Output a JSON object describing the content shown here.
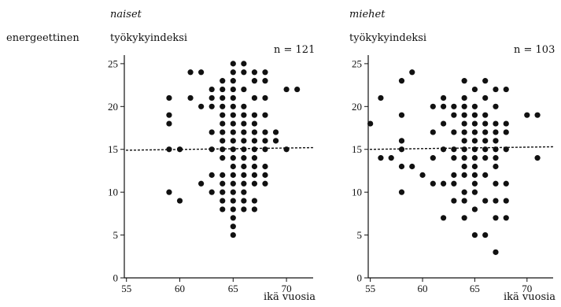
{
  "row_label": "energeettinen",
  "chart_data": [
    {
      "type": "scatter",
      "title": "naiset",
      "ylabel": "työkykyindeksi",
      "xlabel": "ikä vuosia",
      "annotation": "n = 121",
      "xlim": [
        54.8,
        72.5
      ],
      "ylim": [
        0,
        26
      ],
      "xticks": [
        55,
        60,
        65,
        70
      ],
      "yticks": [
        0,
        5,
        10,
        15,
        20,
        25
      ],
      "grid": false,
      "reference_line": {
        "style": "dashed",
        "y_start": 14.9,
        "y_end": 15.2
      },
      "points": [
        [
          59,
          21
        ],
        [
          59,
          19
        ],
        [
          59,
          18
        ],
        [
          59,
          15
        ],
        [
          59,
          10
        ],
        [
          60,
          15
        ],
        [
          60,
          9
        ],
        [
          61,
          24
        ],
        [
          61,
          21
        ],
        [
          62,
          24
        ],
        [
          62,
          20
        ],
        [
          62,
          11
        ],
        [
          63,
          22
        ],
        [
          63,
          21
        ],
        [
          63,
          20
        ],
        [
          63,
          17
        ],
        [
          63,
          15
        ],
        [
          63,
          12
        ],
        [
          63,
          10
        ],
        [
          64,
          23
        ],
        [
          64,
          22
        ],
        [
          64,
          21
        ],
        [
          64,
          20
        ],
        [
          64,
          19
        ],
        [
          64,
          18
        ],
        [
          64,
          17
        ],
        [
          64,
          16
        ],
        [
          64,
          15
        ],
        [
          64,
          14
        ],
        [
          64,
          12
        ],
        [
          64,
          11
        ],
        [
          64,
          10
        ],
        [
          64,
          9
        ],
        [
          64,
          8
        ],
        [
          65,
          25
        ],
        [
          65,
          24
        ],
        [
          65,
          23
        ],
        [
          65,
          22
        ],
        [
          65,
          21
        ],
        [
          65,
          20
        ],
        [
          65,
          19
        ],
        [
          65,
          18
        ],
        [
          65,
          17
        ],
        [
          65,
          16
        ],
        [
          65,
          15
        ],
        [
          65,
          14
        ],
        [
          65,
          13
        ],
        [
          65,
          12
        ],
        [
          65,
          11
        ],
        [
          65,
          10
        ],
        [
          65,
          9
        ],
        [
          65,
          8
        ],
        [
          65,
          7
        ],
        [
          65,
          6
        ],
        [
          65,
          5
        ],
        [
          66,
          25
        ],
        [
          66,
          24
        ],
        [
          66,
          22
        ],
        [
          66,
          20
        ],
        [
          66,
          19
        ],
        [
          66,
          18
        ],
        [
          66,
          17
        ],
        [
          66,
          16
        ],
        [
          66,
          15
        ],
        [
          66,
          14
        ],
        [
          66,
          13
        ],
        [
          66,
          12
        ],
        [
          66,
          11
        ],
        [
          66,
          10
        ],
        [
          66,
          9
        ],
        [
          66,
          8
        ],
        [
          67,
          24
        ],
        [
          67,
          23
        ],
        [
          67,
          21
        ],
        [
          67,
          19
        ],
        [
          67,
          18
        ],
        [
          67,
          17
        ],
        [
          67,
          16
        ],
        [
          67,
          15
        ],
        [
          67,
          14
        ],
        [
          67,
          13
        ],
        [
          67,
          12
        ],
        [
          67,
          11
        ],
        [
          67,
          9
        ],
        [
          67,
          8
        ],
        [
          68,
          24
        ],
        [
          68,
          23
        ],
        [
          68,
          21
        ],
        [
          68,
          19
        ],
        [
          68,
          17
        ],
        [
          68,
          16
        ],
        [
          68,
          15
        ],
        [
          68,
          13
        ],
        [
          68,
          12
        ],
        [
          68,
          11
        ],
        [
          69,
          17
        ],
        [
          69,
          16
        ],
        [
          70,
          15
        ],
        [
          70,
          22
        ],
        [
          71,
          22
        ]
      ]
    },
    {
      "type": "scatter",
      "title": "miehet",
      "ylabel": "työkykyindeksi",
      "xlabel": "ikä vuosia",
      "annotation": "n = 103",
      "xlim": [
        54.8,
        72.5
      ],
      "ylim": [
        0,
        26
      ],
      "xticks": [
        55,
        60,
        65,
        70
      ],
      "yticks": [
        0,
        5,
        10,
        15,
        20,
        25
      ],
      "grid": false,
      "reference_line": {
        "style": "dashed",
        "y_start": 15.0,
        "y_end": 15.3
      },
      "points": [
        [
          55,
          18
        ],
        [
          56,
          21
        ],
        [
          56,
          14
        ],
        [
          57,
          14
        ],
        [
          58,
          23
        ],
        [
          58,
          19
        ],
        [
          58,
          16
        ],
        [
          58,
          15
        ],
        [
          58,
          13
        ],
        [
          58,
          10
        ],
        [
          59,
          24
        ],
        [
          59,
          13
        ],
        [
          60,
          12
        ],
        [
          61,
          20
        ],
        [
          61,
          17
        ],
        [
          61,
          14
        ],
        [
          61,
          11
        ],
        [
          62,
          21
        ],
        [
          62,
          20
        ],
        [
          62,
          18
        ],
        [
          62,
          15
        ],
        [
          62,
          11
        ],
        [
          62,
          7
        ],
        [
          63,
          20
        ],
        [
          63,
          19
        ],
        [
          63,
          17
        ],
        [
          63,
          15
        ],
        [
          63,
          14
        ],
        [
          63,
          12
        ],
        [
          63,
          11
        ],
        [
          63,
          9
        ],
        [
          64,
          23
        ],
        [
          64,
          21
        ],
        [
          64,
          20
        ],
        [
          64,
          19
        ],
        [
          64,
          18
        ],
        [
          64,
          17
        ],
        [
          64,
          16
        ],
        [
          64,
          15
        ],
        [
          64,
          14
        ],
        [
          64,
          13
        ],
        [
          64,
          12
        ],
        [
          64,
          10
        ],
        [
          64,
          9
        ],
        [
          64,
          7
        ],
        [
          65,
          22
        ],
        [
          65,
          20
        ],
        [
          65,
          19
        ],
        [
          65,
          18
        ],
        [
          65,
          17
        ],
        [
          65,
          16
        ],
        [
          65,
          15
        ],
        [
          65,
          14
        ],
        [
          65,
          13
        ],
        [
          65,
          12
        ],
        [
          65,
          11
        ],
        [
          65,
          10
        ],
        [
          65,
          8
        ],
        [
          65,
          5
        ],
        [
          66,
          23
        ],
        [
          66,
          21
        ],
        [
          66,
          19
        ],
        [
          66,
          18
        ],
        [
          66,
          17
        ],
        [
          66,
          16
        ],
        [
          66,
          15
        ],
        [
          66,
          14
        ],
        [
          66,
          12
        ],
        [
          66,
          9
        ],
        [
          66,
          5
        ],
        [
          67,
          22
        ],
        [
          67,
          20
        ],
        [
          67,
          18
        ],
        [
          67,
          17
        ],
        [
          67,
          16
        ],
        [
          67,
          15
        ],
        [
          67,
          14
        ],
        [
          67,
          13
        ],
        [
          67,
          11
        ],
        [
          67,
          9
        ],
        [
          67,
          7
        ],
        [
          67,
          3
        ],
        [
          68,
          22
        ],
        [
          68,
          18
        ],
        [
          68,
          17
        ],
        [
          68,
          15
        ],
        [
          68,
          11
        ],
        [
          68,
          9
        ],
        [
          68,
          7
        ],
        [
          70,
          19
        ],
        [
          71,
          19
        ],
        [
          71,
          14
        ]
      ]
    }
  ]
}
